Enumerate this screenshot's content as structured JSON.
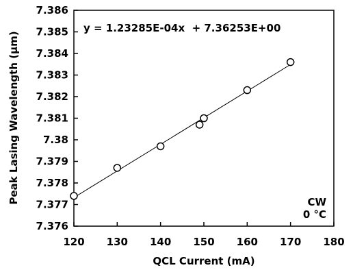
{
  "chart_data": {
    "type": "scatter",
    "title": "",
    "xlabel": "QCL Current (mA)",
    "ylabel": "Peak Lasing Wavelength (µm)",
    "xlim": [
      120,
      180
    ],
    "ylim": [
      7.376,
      7.386
    ],
    "x_ticks": [
      "120",
      "130",
      "140",
      "150",
      "160",
      "170",
      "180"
    ],
    "y_ticks": [
      "7.376",
      "7.377",
      "7.378",
      "7.379",
      "7.38",
      "7.381",
      "7.382",
      "7.383",
      "7.384",
      "7.385",
      "7.386"
    ],
    "grid": false,
    "series": [
      {
        "marker": "open-circle",
        "points": [
          {
            "x": 120,
            "y": 7.3774
          },
          {
            "x": 130,
            "y": 7.3787
          },
          {
            "x": 140,
            "y": 7.3797
          },
          {
            "x": 149,
            "y": 7.3807
          },
          {
            "x": 150,
            "y": 7.381
          },
          {
            "x": 160,
            "y": 7.3823
          },
          {
            "x": 170,
            "y": 7.3836
          }
        ]
      }
    ],
    "trendline": {
      "slope": 0.000123285,
      "intercept": 7.36253,
      "x_range": [
        120,
        170
      ],
      "equation_label": "y = 1.23285E-04x  + 7.36253E+00"
    },
    "annotations": [
      "CW",
      "0 °C"
    ]
  }
}
